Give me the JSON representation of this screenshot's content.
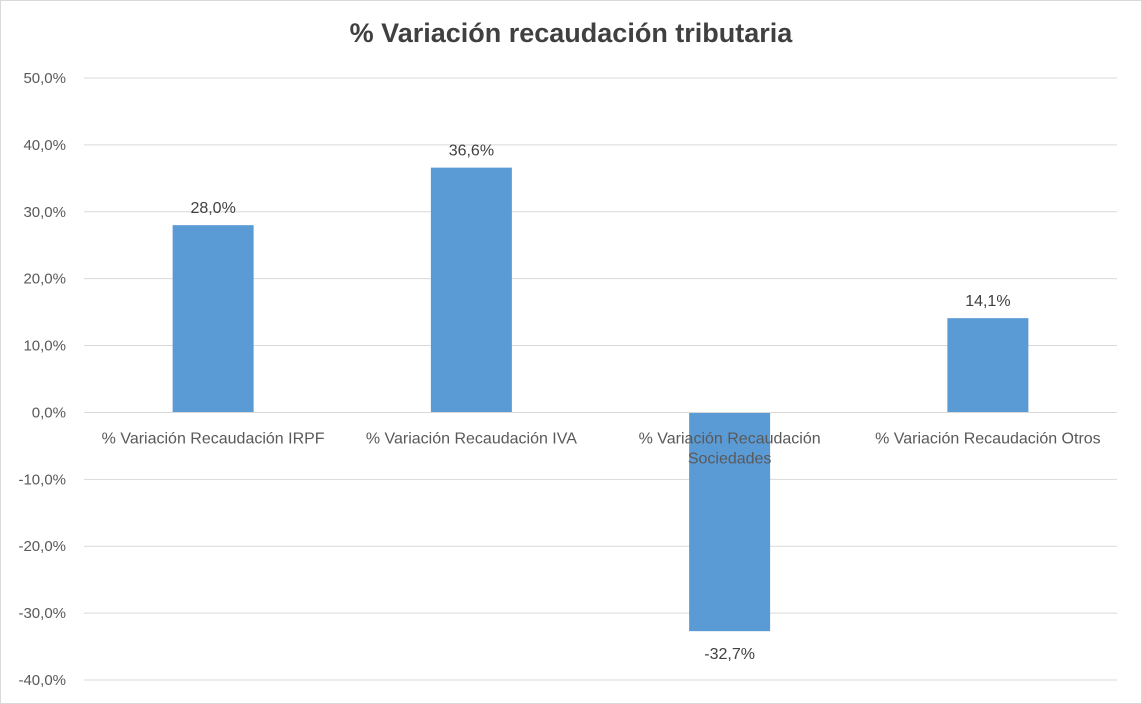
{
  "chart_data": {
    "type": "bar",
    "title": "% Variación recaudación tributaria",
    "categories": [
      [
        "% Variación Recaudación IRPF"
      ],
      [
        "% Variación Recaudación IVA"
      ],
      [
        "%  Variación Recaudación",
        "Sociedades"
      ],
      [
        "% Variación Recaudación Otros"
      ]
    ],
    "values": [
      28.0,
      36.6,
      -32.7,
      14.1
    ],
    "value_labels": [
      "28,0%",
      "36,6%",
      "-32,7%",
      "14,1%"
    ],
    "yticks": [
      50,
      40,
      30,
      20,
      10,
      0,
      -10,
      -20,
      -30,
      -40
    ],
    "ytick_labels": [
      "50,0%",
      "40,0%",
      "30,0%",
      "20,0%",
      "10,0%",
      "0,0%",
      "-10,0%",
      "-20,0%",
      "-30,0%",
      "-40,0%"
    ],
    "ylim": [
      -40,
      50
    ],
    "grid": true,
    "legend": "none",
    "colors": {
      "bar": "#5b9bd5",
      "grid": "#d9d9d9",
      "axis": "#d9d9d9"
    }
  }
}
